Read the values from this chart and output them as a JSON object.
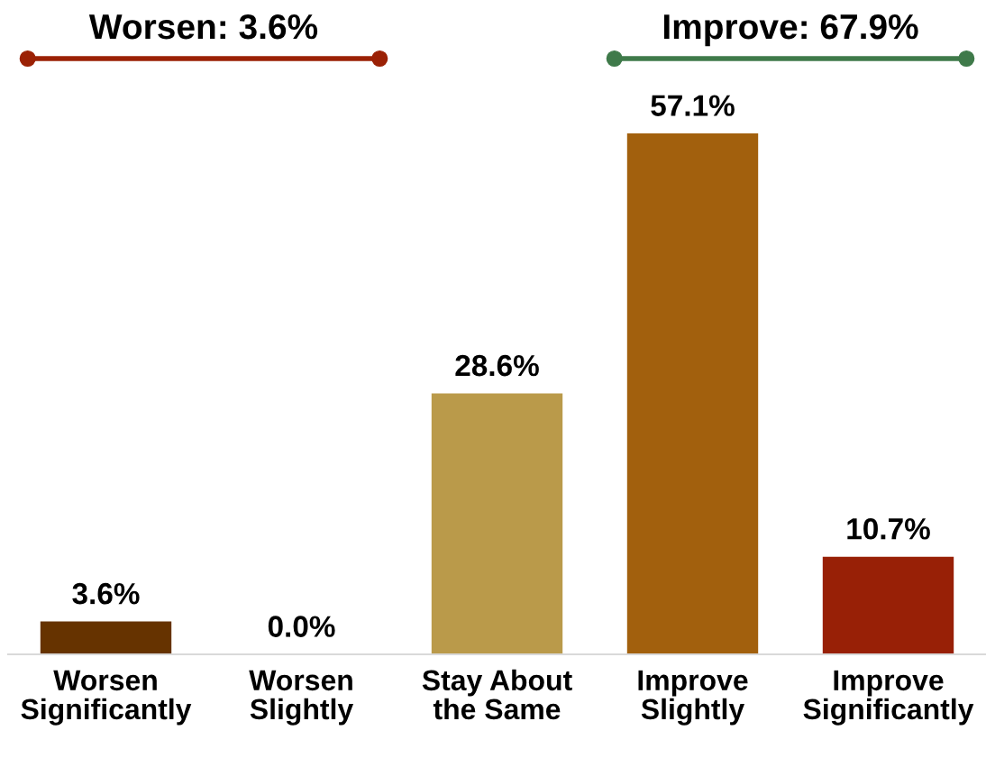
{
  "chart_data": {
    "type": "bar",
    "categories": [
      "Worsen\nSignificantly",
      "Worsen\nSlightly",
      "Stay About\nthe Same",
      "Improve\nSlightly",
      "Improve\nSignificantly"
    ],
    "values": [
      3.6,
      0.0,
      28.6,
      57.1,
      10.7
    ],
    "colors": [
      "#663300",
      "#7a3f00",
      "#ba9a4a",
      "#a2600d",
      "#982006"
    ],
    "value_labels": [
      "3.6%",
      "0.0%",
      "28.6%",
      "57.1%",
      "10.7%"
    ],
    "tick_labels": "x",
    "annotations": [
      "Worsen: 3.6%",
      "Improve: 67.9%"
    ]
  }
}
